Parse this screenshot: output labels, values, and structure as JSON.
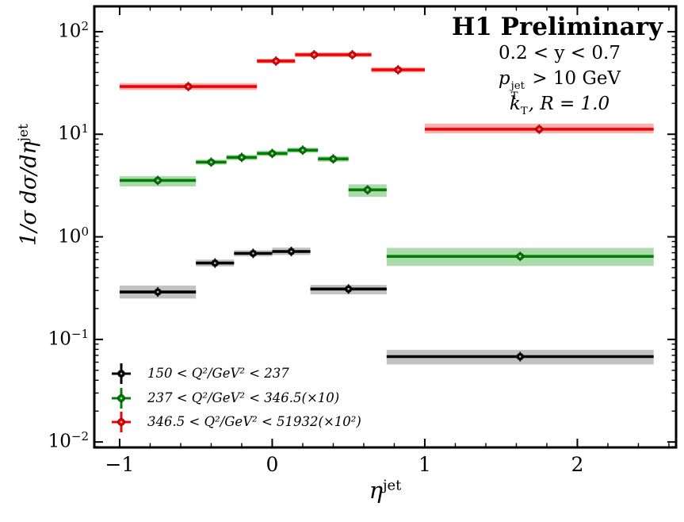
{
  "chart_data": {
    "type": "errorbar",
    "title": "H1 Preliminary",
    "annotations": [
      {
        "text": "0.2 < y < 0.7"
      },
      {
        "symbol": "p",
        "sub": "T",
        "sup": "jet",
        "tail": " > 10 GeV"
      },
      {
        "symbol": "k",
        "sub": "T",
        "tail": ", R = 1.0"
      }
    ],
    "xlabel": {
      "base": "η",
      "sup": "jet"
    },
    "ylabel": {
      "base": "1/σ dσ/dη",
      "sup": "jet"
    },
    "axes": {
      "xlim": [
        -1.166,
        2.647
      ],
      "ylog_lim": [
        -2.053,
        2.247
      ],
      "x_major_ticks": [
        -1,
        0,
        1,
        2
      ],
      "x_major_labels": [
        "−1",
        "0",
        "1",
        "2"
      ],
      "x_minor_step": 0.2,
      "y_major_exponents": [
        2,
        1,
        0,
        -1,
        -2
      ],
      "y_major_labels": [
        {
          "base": "10",
          "exp": "2"
        },
        {
          "base": "10",
          "exp": "1"
        },
        {
          "base": "10",
          "exp": "0"
        },
        {
          "base": "10",
          "exp": "−1"
        },
        {
          "base": "10",
          "exp": "−2"
        }
      ],
      "grid": false
    },
    "series": [
      {
        "legend_label": "150 < Q²/GeV² < 237",
        "color": "#000000",
        "band_color": "rgba(80,80,80,0.35)",
        "scale_factor": 1,
        "points": [
          {
            "bin": [
              -1.0,
              -0.5
            ],
            "x": -0.75,
            "y": 0.29,
            "band": [
              0.25,
              0.335
            ]
          },
          {
            "bin": [
              -0.5,
              -0.25
            ],
            "x": -0.375,
            "y": 0.555,
            "band": [
              0.515,
              0.6
            ]
          },
          {
            "bin": [
              -0.25,
              0.0
            ],
            "x": -0.125,
            "y": 0.69,
            "band": [
              0.645,
              0.74
            ]
          },
          {
            "bin": [
              0.0,
              0.25
            ],
            "x": 0.125,
            "y": 0.72,
            "band": [
              0.665,
              0.785
            ]
          },
          {
            "bin": [
              0.25,
              0.75
            ],
            "x": 0.5,
            "y": 0.31,
            "band": [
              0.275,
              0.34
            ]
          },
          {
            "bin": [
              0.75,
              2.5
            ],
            "x": 1.625,
            "y": 0.068,
            "band": [
              0.057,
              0.079
            ]
          }
        ]
      },
      {
        "legend_label": "237 < Q²/GeV² < 346.5(×10)",
        "color": "#008000",
        "band_color": "rgba(0,140,0,0.32)",
        "scale_factor": 10,
        "points": [
          {
            "bin": [
              -1.0,
              -0.5
            ],
            "x": -0.75,
            "y": 3.55,
            "band": [
              3.1,
              3.9
            ]
          },
          {
            "bin": [
              -0.5,
              -0.3
            ],
            "x": -0.4,
            "y": 5.35,
            "band": [
              5.05,
              5.65
            ]
          },
          {
            "bin": [
              -0.3,
              -0.1
            ],
            "x": -0.2,
            "y": 5.95,
            "band": [
              5.6,
              6.3
            ]
          },
          {
            "bin": [
              -0.1,
              0.1
            ],
            "x": 0.0,
            "y": 6.5,
            "band": [
              6.15,
              6.9
            ]
          },
          {
            "bin": [
              0.1,
              0.3
            ],
            "x": 0.2,
            "y": 7.0,
            "band": [
              6.6,
              7.4
            ]
          },
          {
            "bin": [
              0.3,
              0.5
            ],
            "x": 0.4,
            "y": 5.75,
            "band": [
              5.4,
              6.1
            ]
          },
          {
            "bin": [
              0.5,
              0.75
            ],
            "x": 0.625,
            "y": 2.87,
            "band": [
              2.45,
              3.25
            ]
          },
          {
            "bin": [
              0.75,
              2.5
            ],
            "x": 1.625,
            "y": 0.645,
            "band": [
              0.52,
              0.78
            ]
          }
        ]
      },
      {
        "legend_label": "346.5 < Q²/GeV² < 51932(×10²)",
        "color": "#f40000",
        "band_color": "rgba(255,30,30,0.35)",
        "scale_factor": 100,
        "points": [
          {
            "bin": [
              -1.0,
              -0.1
            ],
            "x": -0.55,
            "y": 29.2,
            "band": [
              27.0,
              31.5
            ]
          },
          {
            "bin": [
              -0.1,
              0.15
            ],
            "x": 0.025,
            "y": 51.7,
            "band": [
              49.0,
              54.5
            ]
          },
          {
            "bin": [
              0.15,
              0.4
            ],
            "x": 0.275,
            "y": 59.6,
            "band": [
              56.5,
              63.0
            ]
          },
          {
            "bin": [
              0.4,
              0.65
            ],
            "x": 0.525,
            "y": 59.6,
            "band": [
              56.5,
              63.0
            ]
          },
          {
            "bin": [
              0.65,
              1.0
            ],
            "x": 0.825,
            "y": 42.5,
            "band": [
              40.0,
              45.0
            ]
          },
          {
            "bin": [
              1.0,
              2.5
            ],
            "x": 1.75,
            "y": 11.2,
            "band": [
              10.2,
              12.7
            ]
          }
        ]
      }
    ],
    "legend": {
      "position": "lower-left"
    }
  }
}
